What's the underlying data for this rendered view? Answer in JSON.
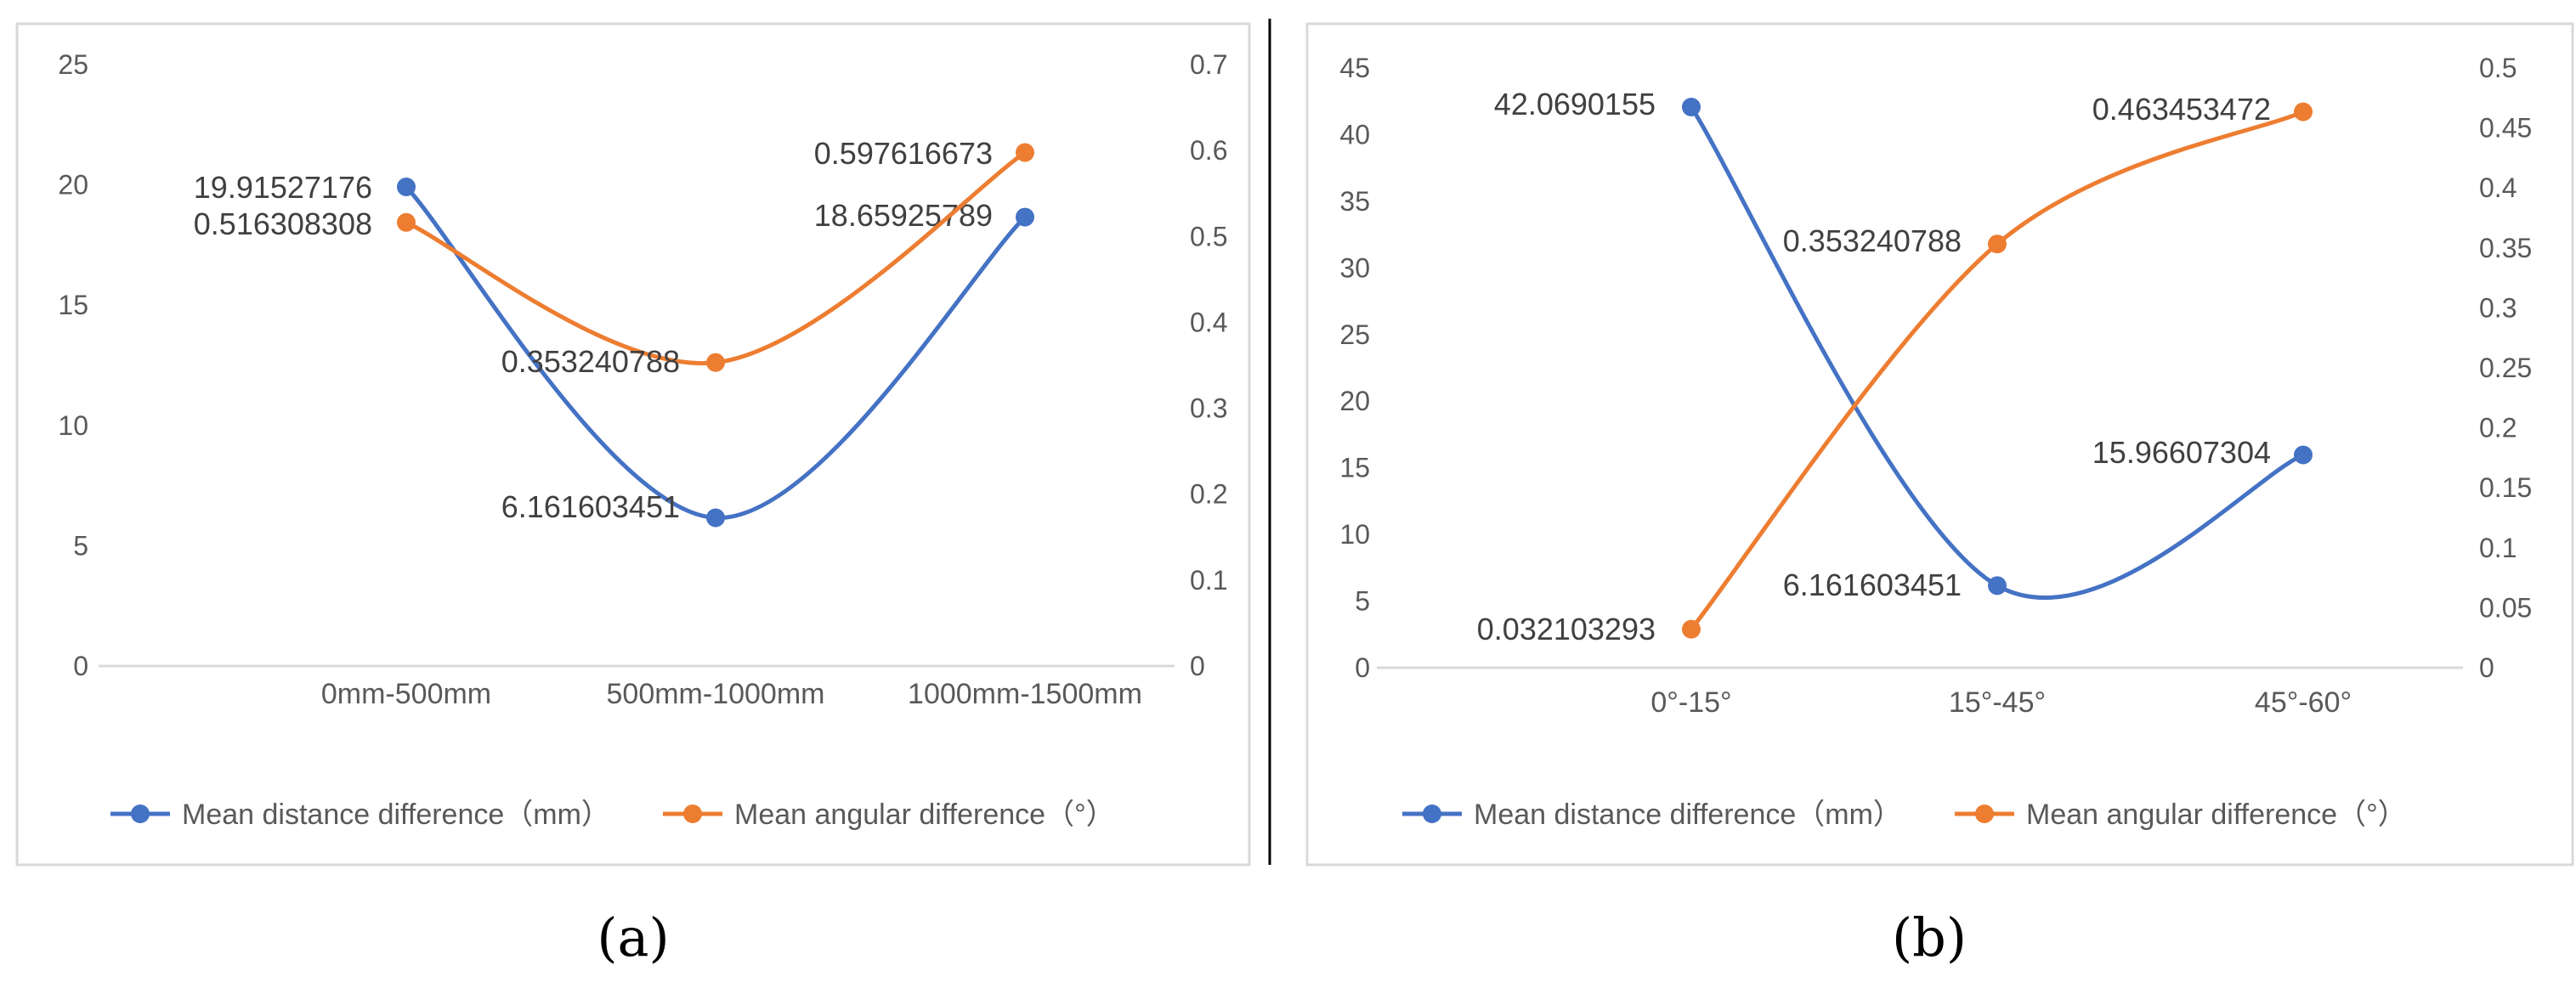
{
  "colors": {
    "series1": "#4472C4",
    "series2": "#ED7D31",
    "axis": "#D9D9D9",
    "frame": "#D9D9D9",
    "divider": "#000000"
  },
  "chart_data": [
    {
      "type": "line",
      "caption": "(a)",
      "categories": [
        "0mm-500mm",
        "500mm-1000mm",
        "1000mm-1500mm"
      ],
      "y_left": {
        "ylim": [
          0,
          25
        ],
        "ticks": [
          "0",
          "5",
          "10",
          "15",
          "20",
          "25"
        ]
      },
      "y_right": {
        "ylim": [
          0,
          0.7
        ],
        "ticks": [
          "0",
          "0.1",
          "0.2",
          "0.3",
          "0.4",
          "0.5",
          "0.6",
          "0.7"
        ]
      },
      "series": [
        {
          "name": "Mean distance difference（mm）",
          "axis": "left",
          "values": [
            19.91527176,
            6.161603451,
            18.65925789
          ],
          "labels": [
            "19.91527176",
            "6.161603451",
            "18.65925789"
          ]
        },
        {
          "name": "Mean angular difference（°）",
          "axis": "right",
          "values": [
            0.516308308,
            0.353240788,
            0.597616673
          ],
          "labels": [
            "0.516308308",
            "0.353240788",
            "0.597616673"
          ]
        }
      ],
      "legend": "bottom"
    },
    {
      "type": "line",
      "caption": "(b)",
      "categories": [
        "0°-15°",
        "15°-45°",
        "45°-60°"
      ],
      "y_left": {
        "ylim": [
          0,
          45
        ],
        "ticks": [
          "0",
          "5",
          "10",
          "15",
          "20",
          "25",
          "30",
          "35",
          "40",
          "45"
        ]
      },
      "y_right": {
        "ylim": [
          0,
          0.5
        ],
        "ticks": [
          "0",
          "0.05",
          "0.1",
          "0.15",
          "0.2",
          "0.25",
          "0.3",
          "0.35",
          "0.4",
          "0.45",
          "0.5"
        ]
      },
      "series": [
        {
          "name": "Mean distance difference（mm）",
          "axis": "left",
          "values": [
            42.0690155,
            6.161603451,
            15.96607304
          ],
          "labels": [
            "42.0690155",
            "6.161603451",
            "15.96607304"
          ]
        },
        {
          "name": "Mean angular difference（°）",
          "axis": "right",
          "values": [
            0.032103293,
            0.353240788,
            0.463453472
          ],
          "labels": [
            "0.032103293",
            "0.353240788",
            "0.463453472"
          ]
        }
      ],
      "legend": "bottom"
    }
  ]
}
